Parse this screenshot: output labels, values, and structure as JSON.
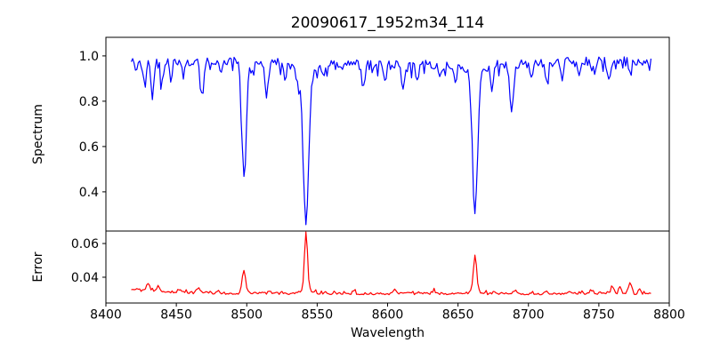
{
  "chart_data": {
    "type": "line",
    "title": "20090617_1952m34_114",
    "xlabel": "Wavelength",
    "xlim": [
      8400,
      8800
    ],
    "x_ticks": [
      8400,
      8450,
      8500,
      8550,
      8600,
      8650,
      8700,
      8750,
      8800
    ],
    "grid": false,
    "legend": "none",
    "sampling": {
      "start": 8418,
      "end": 8787,
      "step": 1.0,
      "seed": 20090617
    },
    "colors": {
      "spectrum_line": "#0000ff",
      "error_line": "#ff0000",
      "axes": "#000000",
      "background": "#ffffff"
    },
    "panels": [
      {
        "name": "spectrum",
        "ylabel": "Spectrum",
        "ylim": [
          0.227,
          1.082
        ],
        "yticks": [
          0.4,
          0.6,
          0.8,
          1.0
        ],
        "ytick_labels": [
          "0.4",
          "0.6",
          "0.8",
          "1.0"
        ],
        "color": "#0000ff",
        "continuum": {
          "base": 0.968,
          "wiggle_amp": 0.008,
          "wiggle_period": 47
        },
        "noise": {
          "amp": 0.042,
          "dip_prob": 0.13,
          "dip_base": 0.022,
          "dip_extra": 0.03
        },
        "clamp": [
          0.255,
          1.06
        ],
        "absorption_lines": [
          {
            "center": 8427.0,
            "depth": 0.085,
            "sigma": 1.1
          },
          {
            "center": 8433.0,
            "depth": 0.155,
            "sigma": 1.2
          },
          {
            "center": 8440.0,
            "depth": 0.1,
            "sigma": 1.0
          },
          {
            "center": 8446.0,
            "depth": 0.085,
            "sigma": 0.9
          },
          {
            "center": 8455.0,
            "depth": 0.06,
            "sigma": 0.9
          },
          {
            "center": 8468.0,
            "depth": 0.125,
            "sigma": 1.2
          },
          {
            "center": 8482.0,
            "depth": 0.06,
            "sigma": 0.9
          },
          {
            "center": 8498.0,
            "depth": 0.5,
            "sigma": 1.6
          },
          {
            "center": 8504.0,
            "depth": 0.05,
            "sigma": 0.9
          },
          {
            "center": 8514.0,
            "depth": 0.13,
            "sigma": 1.1
          },
          {
            "center": 8527.0,
            "depth": 0.08,
            "sigma": 0.9
          },
          {
            "center": 8536.0,
            "depth": 0.06,
            "sigma": 0.9
          },
          {
            "center": 8542.1,
            "depth": 0.66,
            "sigma": 1.9
          },
          {
            "center": 8542.1,
            "depth": 0.05,
            "sigma": 6.0
          },
          {
            "center": 8555.0,
            "depth": 0.05,
            "sigma": 0.9
          },
          {
            "center": 8583.0,
            "depth": 0.11,
            "sigma": 1.1
          },
          {
            "center": 8598.0,
            "depth": 0.085,
            "sigma": 0.9
          },
          {
            "center": 8611.0,
            "depth": 0.1,
            "sigma": 1.1
          },
          {
            "center": 8621.0,
            "depth": 0.085,
            "sigma": 0.9
          },
          {
            "center": 8637.0,
            "depth": 0.06,
            "sigma": 0.9
          },
          {
            "center": 8648.0,
            "depth": 0.085,
            "sigma": 0.9
          },
          {
            "center": 8662.1,
            "depth": 0.6,
            "sigma": 1.8
          },
          {
            "center": 8662.1,
            "depth": 0.05,
            "sigma": 5.0
          },
          {
            "center": 8674.0,
            "depth": 0.115,
            "sigma": 1.0
          },
          {
            "center": 8688.0,
            "depth": 0.195,
            "sigma": 1.3
          },
          {
            "center": 8702.0,
            "depth": 0.06,
            "sigma": 0.9
          },
          {
            "center": 8713.0,
            "depth": 0.09,
            "sigma": 1.0
          },
          {
            "center": 8724.0,
            "depth": 0.06,
            "sigma": 0.9
          },
          {
            "center": 8736.0,
            "depth": 0.08,
            "sigma": 1.0
          },
          {
            "center": 8747.0,
            "depth": 0.06,
            "sigma": 0.9
          },
          {
            "center": 8757.0,
            "depth": 0.075,
            "sigma": 1.0
          },
          {
            "center": 8772.0,
            "depth": 0.05,
            "sigma": 0.9
          }
        ]
      },
      {
        "name": "error",
        "ylabel": "Error",
        "ylim": [
          0.0247,
          0.0674
        ],
        "yticks": [
          0.04,
          0.06
        ],
        "ytick_labels": [
          "0.04",
          "0.06"
        ],
        "color": "#ff0000",
        "baseline": 0.0303,
        "left_edge_boost": {
          "amp": 0.0025,
          "scale": 30
        },
        "noise": {
          "amp": 0.0014,
          "bump_prob": 0.1,
          "bump": 0.0012
        },
        "clamp": [
          0.0282,
          0.0668
        ],
        "peaks": [
          {
            "center": 8430.0,
            "height": 0.0045,
            "sigma": 1.1
          },
          {
            "center": 8437.0,
            "height": 0.003,
            "sigma": 1.0
          },
          {
            "center": 8452.0,
            "height": 0.0018,
            "sigma": 0.9
          },
          {
            "center": 8466.0,
            "height": 0.0028,
            "sigma": 1.1
          },
          {
            "center": 8480.0,
            "height": 0.0015,
            "sigma": 0.9
          },
          {
            "center": 8498.0,
            "height": 0.014,
            "sigma": 1.2
          },
          {
            "center": 8516.0,
            "height": 0.002,
            "sigma": 1.0
          },
          {
            "center": 8542.1,
            "height": 0.035,
            "sigma": 1.0
          },
          {
            "center": 8542.1,
            "height": 0.003,
            "sigma": 3.5
          },
          {
            "center": 8556.0,
            "height": 0.0015,
            "sigma": 0.9
          },
          {
            "center": 8576.0,
            "height": 0.0015,
            "sigma": 0.9
          },
          {
            "center": 8605.0,
            "height": 0.0022,
            "sigma": 1.0
          },
          {
            "center": 8622.0,
            "height": 0.0015,
            "sigma": 0.9
          },
          {
            "center": 8633.0,
            "height": 0.0018,
            "sigma": 0.9
          },
          {
            "center": 8662.1,
            "height": 0.021,
            "sigma": 1.1
          },
          {
            "center": 8662.1,
            "height": 0.002,
            "sigma": 3.0
          },
          {
            "center": 8676.0,
            "height": 0.0015,
            "sigma": 0.9
          },
          {
            "center": 8690.0,
            "height": 0.0018,
            "sigma": 0.9
          },
          {
            "center": 8712.0,
            "height": 0.0015,
            "sigma": 0.9
          },
          {
            "center": 8730.0,
            "height": 0.0015,
            "sigma": 0.9
          },
          {
            "center": 8745.0,
            "height": 0.0022,
            "sigma": 1.0
          },
          {
            "center": 8760.0,
            "height": 0.0042,
            "sigma": 1.1
          },
          {
            "center": 8765.0,
            "height": 0.0035,
            "sigma": 0.9
          },
          {
            "center": 8772.0,
            "height": 0.0048,
            "sigma": 1.1
          },
          {
            "center": 8779.0,
            "height": 0.0028,
            "sigma": 0.9
          }
        ]
      }
    ]
  }
}
